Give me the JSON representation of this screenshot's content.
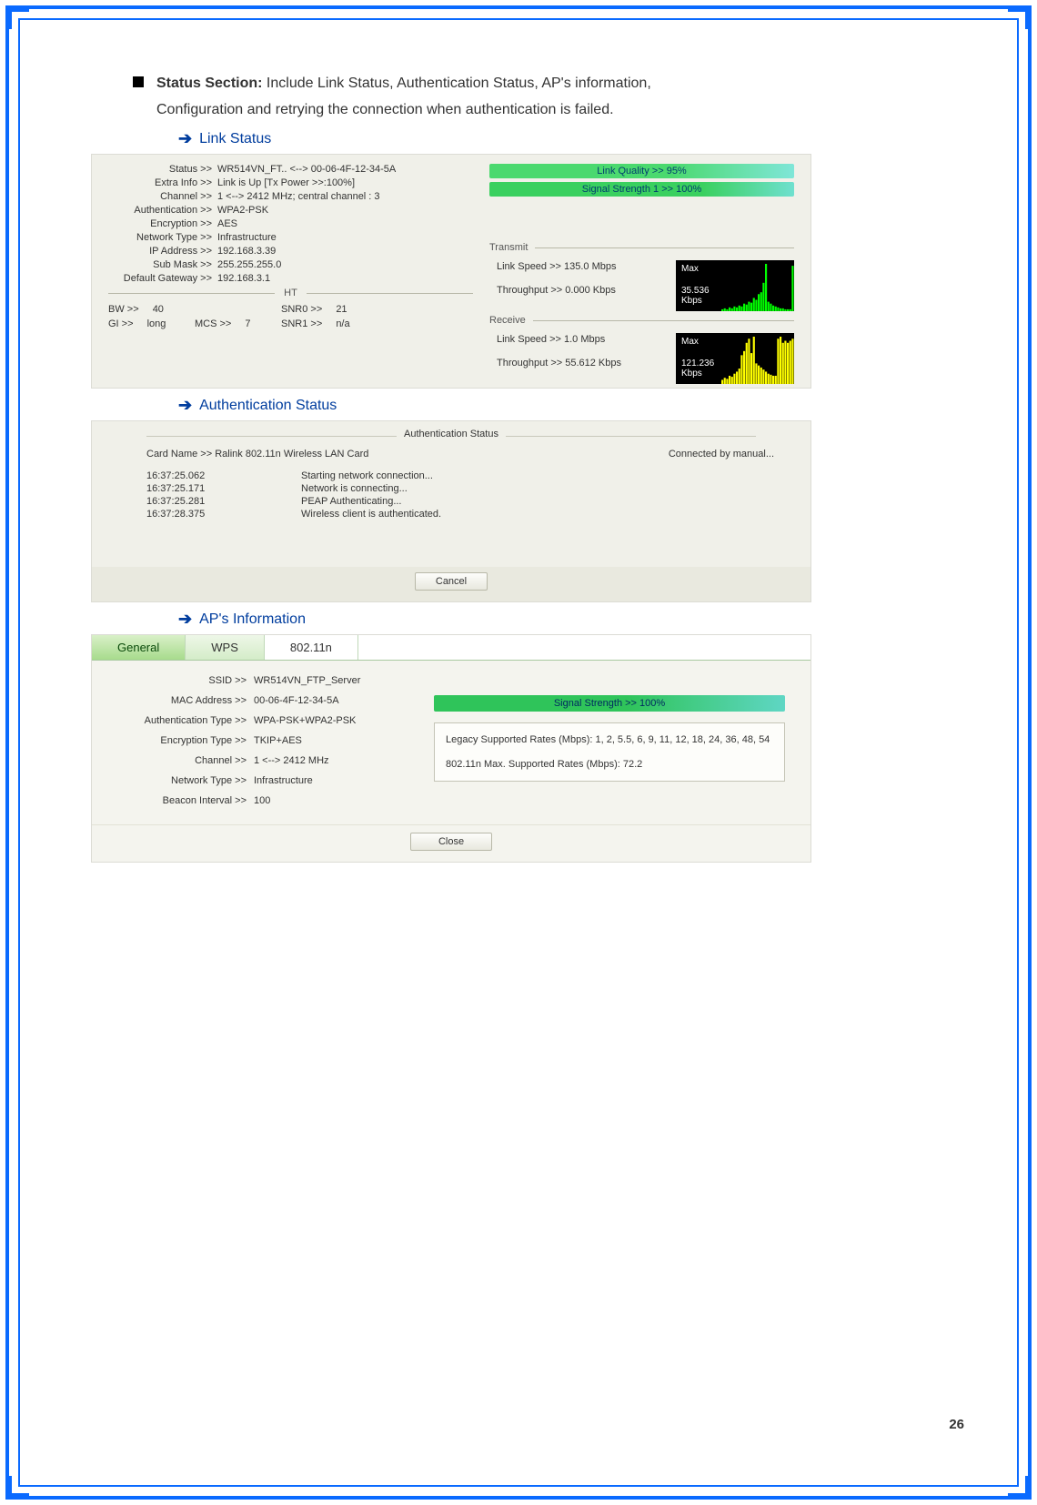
{
  "bullet": {
    "title": "Status Section:",
    "desc1": " Include Link Status, Authentication Status, AP's information,",
    "desc2": "Configuration and retrying the connection when authentication is failed."
  },
  "arrows": {
    "link_status": "Link Status",
    "auth_status": "Authentication Status",
    "ap_info": "AP's Information"
  },
  "link_status": {
    "rows": {
      "status_k": "Status >>",
      "status_v": "WR514VN_FT.. <--> 00-06-4F-12-34-5A",
      "extra_k": "Extra Info >>",
      "extra_v": "Link is Up [Tx Power >>:100%]",
      "channel_k": "Channel >>",
      "channel_v": "1 <--> 2412 MHz; central channel : 3",
      "auth_k": "Authentication >>",
      "auth_v": "WPA2-PSK",
      "enc_k": "Encryption >>",
      "enc_v": "AES",
      "nettype_k": "Network Type >>",
      "nettype_v": "Infrastructure",
      "ip_k": "IP Address >>",
      "ip_v": "192.168.3.39",
      "mask_k": "Sub Mask >>",
      "mask_v": "255.255.255.0",
      "gw_k": "Default Gateway >>",
      "gw_v": "192.168.3.1"
    },
    "ht_label": "HT",
    "ht": {
      "bw_k": "BW >>",
      "bw_v": "40",
      "snr0_k": "SNR0 >>",
      "snr0_v": "21",
      "gi_k": "GI >>",
      "gi_v": "long",
      "mcs_k": "MCS >>",
      "mcs_v": "7",
      "snr1_k": "SNR1 >>",
      "snr1_v": "n/a"
    },
    "quality_bar": "Link Quality >> 95%",
    "signal_bar": "Signal Strength 1 >> 100%",
    "transmit_title": "Transmit",
    "tx_speed": "Link Speed >>  135.0 Mbps",
    "tx_tp": "Throughput >> 0.000 Kbps",
    "receive_title": "Receive",
    "rx_speed": "Link Speed >> 1.0 Mbps",
    "rx_tp": "Throughput >> 55.612 Kbps",
    "tx_graph": {
      "max": "Max",
      "value": "35.536",
      "unit": "Kbps",
      "color": "#00ff00",
      "bars": [
        2,
        3,
        2,
        4,
        3,
        5,
        4,
        6,
        5,
        8,
        7,
        10,
        9,
        14,
        12,
        18,
        20,
        30,
        50,
        10,
        8,
        6,
        5,
        4,
        3,
        3,
        2,
        2,
        2,
        48
      ]
    },
    "rx_graph": {
      "max": "Max",
      "value": "121.236",
      "unit": "Kbps",
      "color": "#ffff00",
      "bars": [
        4,
        6,
        5,
        8,
        7,
        10,
        12,
        15,
        28,
        32,
        40,
        44,
        30,
        46,
        20,
        18,
        16,
        14,
        12,
        10,
        9,
        8,
        8,
        44,
        46,
        40,
        42,
        40,
        42,
        44
      ]
    }
  },
  "auth": {
    "title": "Authentication Status",
    "card_label": "Card Name >> Ralink 802.11n Wireless LAN Card",
    "connected": "Connected by manual...",
    "log": [
      {
        "ts": "16:37:25.062",
        "msg": "Starting network connection..."
      },
      {
        "ts": "16:37:25.171",
        "msg": "Network is connecting..."
      },
      {
        "ts": "16:37:25.281",
        "msg": "PEAP Authenticating..."
      },
      {
        "ts": "16:37:28.375",
        "msg": "Wireless client is authenticated."
      }
    ],
    "cancel": "Cancel"
  },
  "ap": {
    "tabs": {
      "general": "General",
      "wps": "WPS",
      "n802": "802.11n"
    },
    "rows": {
      "ssid_k": "SSID >>",
      "ssid_v": "WR514VN_FTP_Server",
      "mac_k": "MAC Address >>",
      "mac_v": "00-06-4F-12-34-5A",
      "authtype_k": "Authentication Type >>",
      "authtype_v": "WPA-PSK+WPA2-PSK",
      "enctype_k": "Encryption Type >>",
      "enctype_v": "TKIP+AES",
      "channel_k": "Channel >>",
      "channel_v": "1 <--> 2412 MHz",
      "nettype_k": "Network Type >>",
      "nettype_v": "Infrastructure",
      "beacon_k": "Beacon Interval >>",
      "beacon_v": "100"
    },
    "signal_bar": "Signal Strength >> 100%",
    "rates1": "Legacy Supported Rates (Mbps): 1, 2, 5.5, 6, 9, 11, 12, 18, 24, 36, 48, 54",
    "rates2": "802.11n Max. Supported Rates (Mbps): 72.2",
    "close": "Close"
  },
  "page_number": "26",
  "colors": {
    "frame": "#0a6aff",
    "arrow": "#003d9e",
    "panel_bg": "#f0f0e9"
  }
}
